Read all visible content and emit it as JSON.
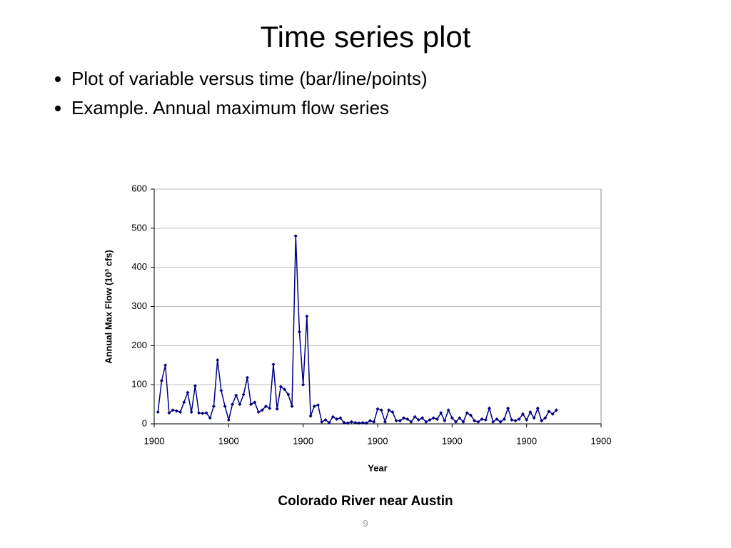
{
  "title": "Time series plot",
  "bullets": [
    "Plot of variable versus time (bar/line/points)",
    "Example. Annual maximum flow series"
  ],
  "chart_data": {
    "type": "line",
    "y_label": "Annual Max Flow (10³ cfs)",
    "x_label": "Year",
    "x": [
      1,
      2,
      3,
      4,
      5,
      6,
      7,
      8,
      9,
      10,
      11,
      12,
      13,
      14,
      15,
      16,
      17,
      18,
      19,
      20,
      21,
      22,
      23,
      24,
      25,
      26,
      27,
      28,
      29,
      30,
      31,
      32,
      33,
      34,
      35,
      36,
      37,
      38,
      39,
      40,
      41,
      42,
      43,
      44,
      45,
      46,
      47,
      48,
      49,
      50,
      51,
      52,
      53,
      54,
      55,
      56,
      57,
      58,
      59,
      60,
      61,
      62,
      63,
      64,
      65,
      66,
      67,
      68,
      69,
      70,
      71,
      72,
      73,
      74,
      75,
      76,
      77,
      78,
      79,
      80,
      81,
      82,
      83,
      84,
      85,
      86,
      87,
      88,
      89,
      90,
      91,
      92,
      93,
      94,
      95,
      96,
      97,
      98,
      99,
      100,
      101,
      102,
      103,
      104,
      105,
      106,
      107,
      108
    ],
    "series": [
      {
        "color": "#000080",
        "values": [
          30,
          110,
          150,
          28,
          35,
          33,
          30,
          55,
          80,
          30,
          97,
          28,
          27,
          28,
          15,
          45,
          163,
          85,
          45,
          10,
          50,
          73,
          50,
          75,
          118,
          50,
          55,
          30,
          35,
          45,
          40,
          152,
          38,
          95,
          88,
          75,
          45,
          480,
          235,
          100,
          275,
          20,
          45,
          48,
          5,
          10,
          3,
          18,
          12,
          15,
          3,
          2,
          5,
          3,
          2,
          3,
          2,
          8,
          5,
          38,
          35,
          5,
          35,
          30,
          8,
          8,
          15,
          12,
          5,
          18,
          10,
          15,
          5,
          10,
          15,
          12,
          28,
          8,
          35,
          15,
          5,
          15,
          5,
          28,
          22,
          8,
          5,
          12,
          10,
          40,
          5,
          12,
          5,
          12,
          40,
          10,
          8,
          12,
          25,
          10,
          30,
          15,
          40,
          8,
          15,
          32,
          25,
          35
        ]
      }
    ],
    "xlim": [
      0,
      120
    ],
    "xticks": [
      {
        "value": 0,
        "label": "1900"
      },
      {
        "value": 20,
        "label": "1900"
      },
      {
        "value": 40,
        "label": "1900"
      },
      {
        "value": 60,
        "label": "1900"
      },
      {
        "value": 80,
        "label": "1900"
      },
      {
        "value": 100,
        "label": "1900"
      },
      {
        "value": 120,
        "label": "1900"
      }
    ],
    "ylim": [
      0,
      600
    ],
    "yticks": [
      0,
      100,
      200,
      300,
      400,
      500,
      600
    ],
    "grid": true
  },
  "caption": "Colorado River near Austin",
  "page_number": "9"
}
